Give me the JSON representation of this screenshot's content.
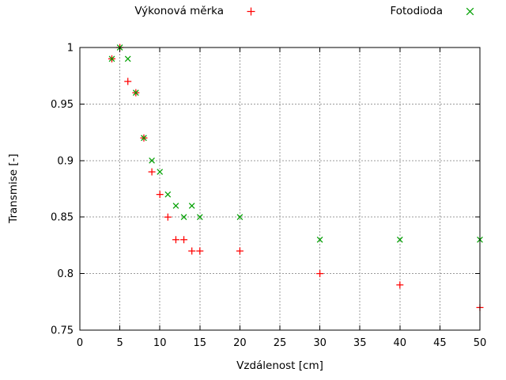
{
  "legend": {
    "entries": [
      {
        "label": "Výkonová měrka",
        "marker": "plus",
        "color": "#ff0000"
      },
      {
        "label": "Fotodioda",
        "marker": "cross",
        "color": "#00a000"
      }
    ]
  },
  "axes": {
    "x_label": "Vzdálenost [cm]",
    "y_label": "Transmise [-]"
  },
  "chart_data": {
    "type": "scatter",
    "title": "",
    "xlabel": "Vzdálenost [cm]",
    "ylabel": "Transmise [-]",
    "xlim": [
      0,
      50
    ],
    "ylim": [
      0.75,
      1.0
    ],
    "x_ticks": [
      0,
      5,
      10,
      15,
      20,
      25,
      30,
      35,
      40,
      45,
      50
    ],
    "x_tick_labels": [
      "0",
      "5",
      "10",
      "15",
      "20",
      "25",
      "30",
      "35",
      "40",
      "45",
      "50"
    ],
    "y_ticks": [
      0.75,
      0.8,
      0.85,
      0.9,
      0.95,
      1.0
    ],
    "y_tick_labels": [
      "0.75",
      "0.8",
      "0.85",
      "0.9",
      "0.95",
      "1"
    ],
    "grid": true,
    "legend_position": "top-outside",
    "series": [
      {
        "name": "Výkonová měrka",
        "marker": "plus",
        "color": "#ff0000",
        "x": [
          4,
          5,
          6,
          7,
          8,
          9,
          10,
          11,
          12,
          13,
          14,
          15,
          20,
          30,
          40,
          50
        ],
        "y": [
          0.99,
          1.0,
          0.97,
          0.96,
          0.92,
          0.89,
          0.87,
          0.85,
          0.83,
          0.83,
          0.82,
          0.82,
          0.82,
          0.8,
          0.79,
          0.77
        ]
      },
      {
        "name": "Fotodioda",
        "marker": "cross",
        "color": "#00a000",
        "x": [
          4,
          5,
          6,
          7,
          8,
          9,
          10,
          11,
          12,
          13,
          14,
          15,
          20,
          30,
          40,
          50
        ],
        "y": [
          0.99,
          1.0,
          0.99,
          0.96,
          0.92,
          0.9,
          0.89,
          0.87,
          0.86,
          0.85,
          0.86,
          0.85,
          0.85,
          0.83,
          0.83,
          0.83
        ]
      }
    ]
  }
}
